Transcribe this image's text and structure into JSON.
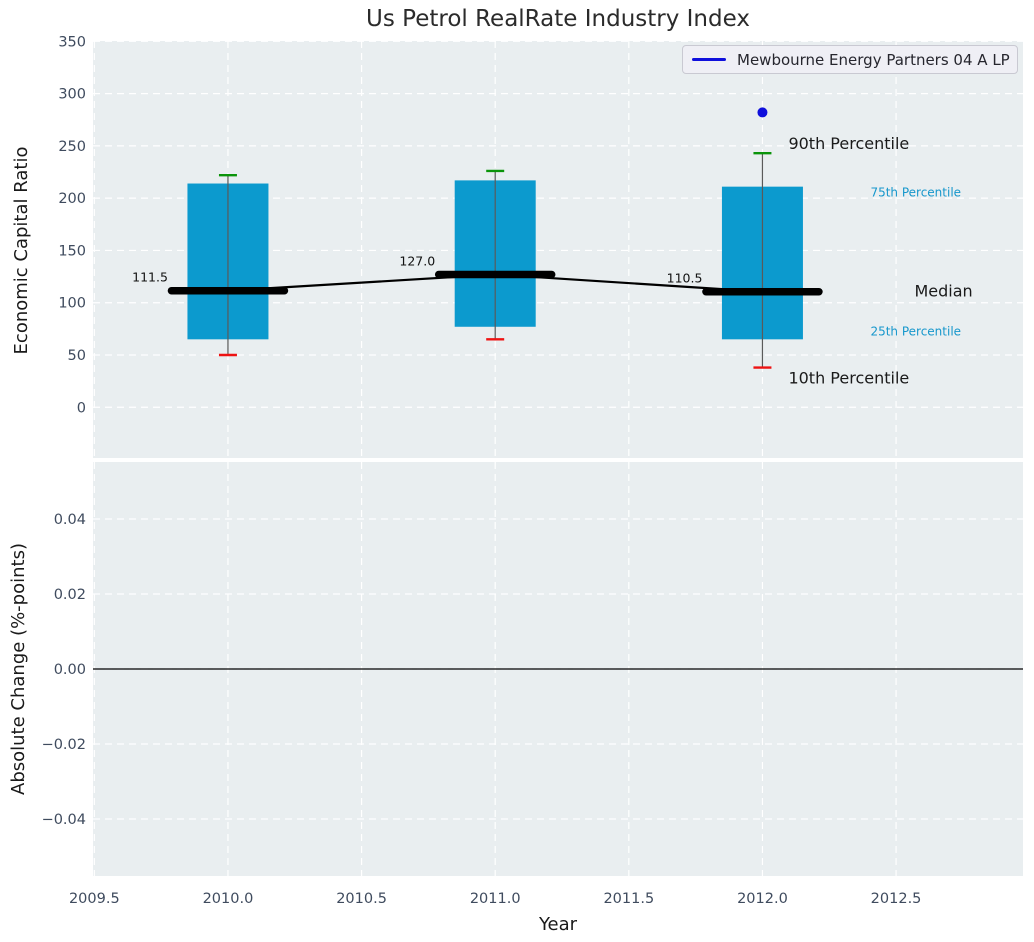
{
  "title": "Us Petrol RealRate Industry Index",
  "legend": {
    "label": "Mewbourne Energy Partners 04 A LP",
    "line_color": "#0f0fdc"
  },
  "chart_data": {
    "type": "boxplot",
    "title": "Us Petrol RealRate Industry Index",
    "xlabel": "Year",
    "xlim": [
      2009.495,
      2012.975
    ],
    "x_ticks": [
      {
        "value": 2009.5,
        "label": "2009.5"
      },
      {
        "value": 2010.0,
        "label": "2010.0"
      },
      {
        "value": 2010.5,
        "label": "2010.5"
      },
      {
        "value": 2011.0,
        "label": "2011.0"
      },
      {
        "value": 2011.5,
        "label": "2011.5"
      },
      {
        "value": 2012.0,
        "label": "2012.0"
      },
      {
        "value": 2012.5,
        "label": "2012.5"
      }
    ],
    "top_panel": {
      "ylabel": "Economic Capital Ratio",
      "ylim": [
        -48.5,
        350.3
      ],
      "y_ticks": [
        {
          "value": 0,
          "label": "0"
        },
        {
          "value": 50,
          "label": "50"
        },
        {
          "value": 100,
          "label": "100"
        },
        {
          "value": 150,
          "label": "150"
        },
        {
          "value": 200,
          "label": "200"
        },
        {
          "value": 250,
          "label": "250"
        },
        {
          "value": 300,
          "label": "300"
        },
        {
          "value": 350,
          "label": "350"
        }
      ],
      "boxes": [
        {
          "year": 2010,
          "p10": 50,
          "p25": 65,
          "median": 111.5,
          "p75": 214,
          "p90": 222,
          "median_label": "111.5"
        },
        {
          "year": 2011,
          "p10": 65,
          "p25": 77,
          "median": 127.0,
          "p75": 217,
          "p90": 226,
          "median_label": "127.0"
        },
        {
          "year": 2012,
          "p10": 38,
          "p25": 65,
          "median": 110.5,
          "p75": 211,
          "p90": 243,
          "median_label": "110.5"
        }
      ],
      "outlier_point": {
        "year": 2012,
        "value": 282,
        "series": "Mewbourne Energy Partners 04 A LP"
      },
      "annotations": {
        "p90": "90th Percentile",
        "p75": "75th Percentile",
        "median": "Median",
        "p25": "25th Percentile",
        "p10": "10th Percentile"
      }
    },
    "bottom_panel": {
      "ylabel": "Absolute Change (%-points)",
      "ylim": [
        -0.0552,
        0.0552
      ],
      "y_ticks": [
        {
          "value": 0.04,
          "label": "0.04"
        },
        {
          "value": 0.02,
          "label": "0.02"
        },
        {
          "value": 0.0,
          "label": "0.00"
        },
        {
          "value": -0.02,
          "label": "−0.02"
        },
        {
          "value": -0.04,
          "label": "−0.04"
        }
      ],
      "zero_line": 0.0
    },
    "colors": {
      "panel_bg": "#e9eef0",
      "grid": "#ffffff",
      "box_fill": "#0c9ace",
      "whisker": "#5a5a5a",
      "cap_top": "#0a940a",
      "cap_bottom": "#ee1212",
      "median_line": "#000000",
      "company": "#0f0fdc",
      "cyan_text": "#1697cc",
      "label_color": "#1a1a1a",
      "tick_color": "#3f4b5e",
      "title_color": "#2b2b2b",
      "zero_line": "#000000"
    }
  }
}
